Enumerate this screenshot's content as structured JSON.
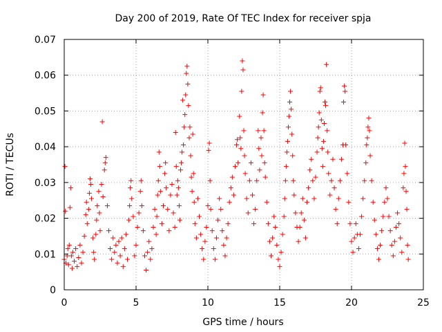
{
  "chart_data": {
    "type": "scatter",
    "title": "Day 200 of 2019, Rate Of TEC Index for receiver spja",
    "xlabel": "GPS time / hours",
    "ylabel": "ROTI / TECUs",
    "xlim": [
      0,
      25
    ],
    "ylim": [
      0,
      0.07
    ],
    "x_ticks": [
      "0",
      "5",
      "10",
      "15",
      "20",
      "25"
    ],
    "y_ticks": [
      "0",
      "0.01",
      "0.02",
      "0.03",
      "0.04",
      "0.05",
      "0.06",
      "0.07"
    ],
    "grid": true,
    "marker": "plus",
    "color": "#ff0000",
    "points": [
      [
        0.0,
        0.0085
      ],
      [
        0.05,
        0.0345
      ],
      [
        0.08,
        0.022
      ],
      [
        0.12,
        0.0075
      ],
      [
        0.2,
        0.0095
      ],
      [
        0.25,
        0.0115
      ],
      [
        0.3,
        0.007
      ],
      [
        0.35,
        0.0125
      ],
      [
        0.4,
        0.023
      ],
      [
        0.45,
        0.0285
      ],
      [
        0.5,
        0.0095
      ],
      [
        0.55,
        0.006
      ],
      [
        0.6,
        0.0105
      ],
      [
        0.7,
        0.008
      ],
      [
        0.8,
        0.0115
      ],
      [
        0.9,
        0.0065
      ],
      [
        1.0,
        0.009
      ],
      [
        1.1,
        0.0125
      ],
      [
        1.2,
        0.0075
      ],
      [
        1.3,
        0.0105
      ],
      [
        1.4,
        0.015
      ],
      [
        1.5,
        0.021
      ],
      [
        1.55,
        0.0245
      ],
      [
        1.6,
        0.0185
      ],
      [
        1.7,
        0.0225
      ],
      [
        1.75,
        0.027
      ],
      [
        1.8,
        0.031
      ],
      [
        1.85,
        0.0295
      ],
      [
        1.9,
        0.0255
      ],
      [
        2.0,
        0.0145
      ],
      [
        2.05,
        0.0105
      ],
      [
        2.1,
        0.0085
      ],
      [
        2.2,
        0.0155
      ],
      [
        2.25,
        0.0195
      ],
      [
        2.3,
        0.0235
      ],
      [
        2.4,
        0.0275
      ],
      [
        2.45,
        0.0215
      ],
      [
        2.5,
        0.0165
      ],
      [
        2.6,
        0.0295
      ],
      [
        2.65,
        0.047
      ],
      [
        2.7,
        0.026
      ],
      [
        2.8,
        0.0335
      ],
      [
        2.85,
        0.0355
      ],
      [
        2.9,
        0.037
      ],
      [
        3.0,
        0.0235
      ],
      [
        3.1,
        0.0165
      ],
      [
        3.2,
        0.0115
      ],
      [
        3.3,
        0.0085
      ],
      [
        3.4,
        0.0145
      ],
      [
        3.5,
        0.0105
      ],
      [
        3.6,
        0.0125
      ],
      [
        3.7,
        0.0075
      ],
      [
        3.8,
        0.0135
      ],
      [
        3.9,
        0.0095
      ],
      [
        4.0,
        0.0145
      ],
      [
        4.1,
        0.0065
      ],
      [
        4.2,
        0.0115
      ],
      [
        4.3,
        0.0155
      ],
      [
        4.4,
        0.0085
      ],
      [
        4.5,
        0.0195
      ],
      [
        4.55,
        0.0235
      ],
      [
        4.6,
        0.0285
      ],
      [
        4.65,
        0.0305
      ],
      [
        4.7,
        0.0255
      ],
      [
        4.8,
        0.0205
      ],
      [
        4.9,
        0.0095
      ],
      [
        5.0,
        0.0125
      ],
      [
        5.1,
        0.0175
      ],
      [
        5.2,
        0.0215
      ],
      [
        5.3,
        0.0275
      ],
      [
        5.35,
        0.0305
      ],
      [
        5.4,
        0.0235
      ],
      [
        5.5,
        0.0165
      ],
      [
        5.6,
        0.0095
      ],
      [
        5.7,
        0.0055
      ],
      [
        5.8,
        0.0105
      ],
      [
        5.9,
        0.0135
      ],
      [
        6.0,
        0.0085
      ],
      [
        6.1,
        0.0115
      ],
      [
        6.2,
        0.0175
      ],
      [
        6.3,
        0.0225
      ],
      [
        6.4,
        0.0155
      ],
      [
        6.45,
        0.0205
      ],
      [
        6.5,
        0.0265
      ],
      [
        6.55,
        0.0305
      ],
      [
        6.6,
        0.0385
      ],
      [
        6.65,
        0.0345
      ],
      [
        6.7,
        0.0275
      ],
      [
        6.8,
        0.0185
      ],
      [
        6.9,
        0.0235
      ],
      [
        7.0,
        0.0325
      ],
      [
        7.05,
        0.0355
      ],
      [
        7.1,
        0.0285
      ],
      [
        7.2,
        0.0225
      ],
      [
        7.3,
        0.0165
      ],
      [
        7.4,
        0.0265
      ],
      [
        7.5,
        0.0295
      ],
      [
        7.6,
        0.0215
      ],
      [
        7.7,
        0.0175
      ],
      [
        7.75,
        0.044
      ],
      [
        7.8,
        0.0345
      ],
      [
        7.85,
        0.0265
      ],
      [
        7.9,
        0.0305
      ],
      [
        7.95,
        0.0285
      ],
      [
        8.0,
        0.0235
      ],
      [
        8.05,
        0.0195
      ],
      [
        8.1,
        0.0335
      ],
      [
        8.15,
        0.0355
      ],
      [
        8.2,
        0.0385
      ],
      [
        8.25,
        0.053
      ],
      [
        8.3,
        0.0405
      ],
      [
        8.35,
        0.0455
      ],
      [
        8.4,
        0.049
      ],
      [
        8.45,
        0.0545
      ],
      [
        8.5,
        0.0605
      ],
      [
        8.55,
        0.0625
      ],
      [
        8.6,
        0.0575
      ],
      [
        8.65,
        0.0515
      ],
      [
        8.7,
        0.0425
      ],
      [
        8.75,
        0.0455
      ],
      [
        8.8,
        0.0375
      ],
      [
        8.85,
        0.0315
      ],
      [
        8.9,
        0.0275
      ],
      [
        8.95,
        0.0435
      ],
      [
        9.0,
        0.0325
      ],
      [
        9.05,
        0.0245
      ],
      [
        9.1,
        0.0185
      ],
      [
        9.2,
        0.0145
      ],
      [
        9.3,
        0.0255
      ],
      [
        9.4,
        0.0205
      ],
      [
        9.5,
        0.0155
      ],
      [
        9.6,
        0.0115
      ],
      [
        9.7,
        0.0085
      ],
      [
        9.8,
        0.0135
      ],
      [
        9.9,
        0.0175
      ],
      [
        10.0,
        0.0235
      ],
      [
        10.05,
        0.039
      ],
      [
        10.1,
        0.041
      ],
      [
        10.15,
        0.0305
      ],
      [
        10.2,
        0.0225
      ],
      [
        10.3,
        0.0165
      ],
      [
        10.4,
        0.0115
      ],
      [
        10.5,
        0.0085
      ],
      [
        10.6,
        0.0145
      ],
      [
        10.7,
        0.0195
      ],
      [
        10.8,
        0.0255
      ],
      [
        10.9,
        0.0225
      ],
      [
        11.0,
        0.0165
      ],
      [
        11.1,
        0.0125
      ],
      [
        11.2,
        0.0095
      ],
      [
        11.3,
        0.0145
      ],
      [
        11.4,
        0.0185
      ],
      [
        11.5,
        0.0245
      ],
      [
        11.6,
        0.0285
      ],
      [
        11.7,
        0.0315
      ],
      [
        11.8,
        0.0265
      ],
      [
        11.9,
        0.0345
      ],
      [
        12.0,
        0.0405
      ],
      [
        12.05,
        0.042
      ],
      [
        12.1,
        0.0355
      ],
      [
        12.2,
        0.0485
      ],
      [
        12.25,
        0.0425
      ],
      [
        12.3,
        0.0395
      ],
      [
        12.35,
        0.0555
      ],
      [
        12.4,
        0.064
      ],
      [
        12.45,
        0.0615
      ],
      [
        12.5,
        0.0445
      ],
      [
        12.55,
        0.0375
      ],
      [
        12.6,
        0.0325
      ],
      [
        12.7,
        0.0255
      ],
      [
        12.8,
        0.0215
      ],
      [
        12.9,
        0.0305
      ],
      [
        13.0,
        0.0355
      ],
      [
        13.1,
        0.0265
      ],
      [
        13.2,
        0.0185
      ],
      [
        13.3,
        0.0225
      ],
      [
        13.4,
        0.0305
      ],
      [
        13.5,
        0.0445
      ],
      [
        13.55,
        0.0395
      ],
      [
        13.6,
        0.0335
      ],
      [
        13.7,
        0.0425
      ],
      [
        13.75,
        0.0375
      ],
      [
        13.8,
        0.0495
      ],
      [
        13.85,
        0.0545
      ],
      [
        13.9,
        0.0445
      ],
      [
        13.95,
        0.0355
      ],
      [
        14.0,
        0.0315
      ],
      [
        14.1,
        0.0245
      ],
      [
        14.2,
        0.0185
      ],
      [
        14.3,
        0.0135
      ],
      [
        14.4,
        0.0095
      ],
      [
        14.5,
        0.0145
      ],
      [
        14.6,
        0.0205
      ],
      [
        14.7,
        0.0175
      ],
      [
        14.8,
        0.0125
      ],
      [
        14.9,
        0.0085
      ],
      [
        15.0,
        0.0065
      ],
      [
        15.1,
        0.0105
      ],
      [
        15.2,
        0.0155
      ],
      [
        15.3,
        0.0205
      ],
      [
        15.35,
        0.0255
      ],
      [
        15.4,
        0.0305
      ],
      [
        15.45,
        0.0345
      ],
      [
        15.5,
        0.0385
      ],
      [
        15.55,
        0.0415
      ],
      [
        15.6,
        0.0455
      ],
      [
        15.65,
        0.0485
      ],
      [
        15.7,
        0.0525
      ],
      [
        15.75,
        0.0555
      ],
      [
        15.8,
        0.0505
      ],
      [
        15.85,
        0.0435
      ],
      [
        15.9,
        0.0375
      ],
      [
        15.95,
        0.0305
      ],
      [
        16.0,
        0.0265
      ],
      [
        16.1,
        0.0215
      ],
      [
        16.2,
        0.0175
      ],
      [
        16.3,
        0.0135
      ],
      [
        16.4,
        0.0175
      ],
      [
        16.5,
        0.0215
      ],
      [
        16.6,
        0.0255
      ],
      [
        16.7,
        0.0195
      ],
      [
        16.8,
        0.0145
      ],
      [
        16.9,
        0.0245
      ],
      [
        17.0,
        0.0285
      ],
      [
        17.1,
        0.0335
      ],
      [
        17.2,
        0.0365
      ],
      [
        17.3,
        0.0305
      ],
      [
        17.4,
        0.0255
      ],
      [
        17.5,
        0.0315
      ],
      [
        17.6,
        0.0385
      ],
      [
        17.65,
        0.0425
      ],
      [
        17.7,
        0.0455
      ],
      [
        17.75,
        0.0495
      ],
      [
        17.8,
        0.0555
      ],
      [
        17.85,
        0.0565
      ],
      [
        17.9,
        0.0475
      ],
      [
        17.95,
        0.0395
      ],
      [
        18.0,
        0.0345
      ],
      [
        18.05,
        0.0415
      ],
      [
        18.1,
        0.0465
      ],
      [
        18.15,
        0.0525
      ],
      [
        18.2,
        0.0515
      ],
      [
        18.25,
        0.063
      ],
      [
        18.3,
        0.0445
      ],
      [
        18.35,
        0.0385
      ],
      [
        18.4,
        0.0325
      ],
      [
        18.5,
        0.0265
      ],
      [
        18.6,
        0.0305
      ],
      [
        18.7,
        0.0365
      ],
      [
        18.8,
        0.0285
      ],
      [
        18.9,
        0.0225
      ],
      [
        19.0,
        0.0185
      ],
      [
        19.1,
        0.0255
      ],
      [
        19.2,
        0.0305
      ],
      [
        19.3,
        0.0365
      ],
      [
        19.4,
        0.0405
      ],
      [
        19.45,
        0.0525
      ],
      [
        19.5,
        0.057
      ],
      [
        19.55,
        0.0555
      ],
      [
        19.6,
        0.0405
      ],
      [
        19.7,
        0.0325
      ],
      [
        19.8,
        0.0245
      ],
      [
        19.9,
        0.0185
      ],
      [
        20.0,
        0.0135
      ],
      [
        20.1,
        0.0105
      ],
      [
        20.2,
        0.0145
      ],
      [
        20.3,
        0.0185
      ],
      [
        20.4,
        0.0155
      ],
      [
        20.5,
        0.0115
      ],
      [
        20.6,
        0.0155
      ],
      [
        20.7,
        0.0205
      ],
      [
        20.8,
        0.0255
      ],
      [
        20.9,
        0.0305
      ],
      [
        21.0,
        0.0355
      ],
      [
        21.05,
        0.0405
      ],
      [
        21.1,
        0.0425
      ],
      [
        21.15,
        0.0455
      ],
      [
        21.2,
        0.048
      ],
      [
        21.25,
        0.0445
      ],
      [
        21.3,
        0.0375
      ],
      [
        21.4,
        0.0305
      ],
      [
        21.5,
        0.0245
      ],
      [
        21.6,
        0.0195
      ],
      [
        21.7,
        0.0155
      ],
      [
        21.8,
        0.0115
      ],
      [
        21.9,
        0.0085
      ],
      [
        22.0,
        0.0125
      ],
      [
        22.1,
        0.0165
      ],
      [
        22.2,
        0.0205
      ],
      [
        22.3,
        0.0245
      ],
      [
        22.4,
        0.0285
      ],
      [
        22.5,
        0.0255
      ],
      [
        22.6,
        0.0205
      ],
      [
        22.7,
        0.0165
      ],
      [
        22.8,
        0.0125
      ],
      [
        22.9,
        0.0095
      ],
      [
        23.0,
        0.0135
      ],
      [
        23.1,
        0.0175
      ],
      [
        23.2,
        0.0215
      ],
      [
        23.3,
        0.0185
      ],
      [
        23.4,
        0.0145
      ],
      [
        23.5,
        0.0105
      ],
      [
        23.6,
        0.0285
      ],
      [
        23.65,
        0.0325
      ],
      [
        23.7,
        0.041
      ],
      [
        23.75,
        0.0345
      ],
      [
        23.8,
        0.0275
      ],
      [
        23.85,
        0.0225
      ],
      [
        23.9,
        0.0125
      ],
      [
        23.95,
        0.0085
      ]
    ]
  }
}
